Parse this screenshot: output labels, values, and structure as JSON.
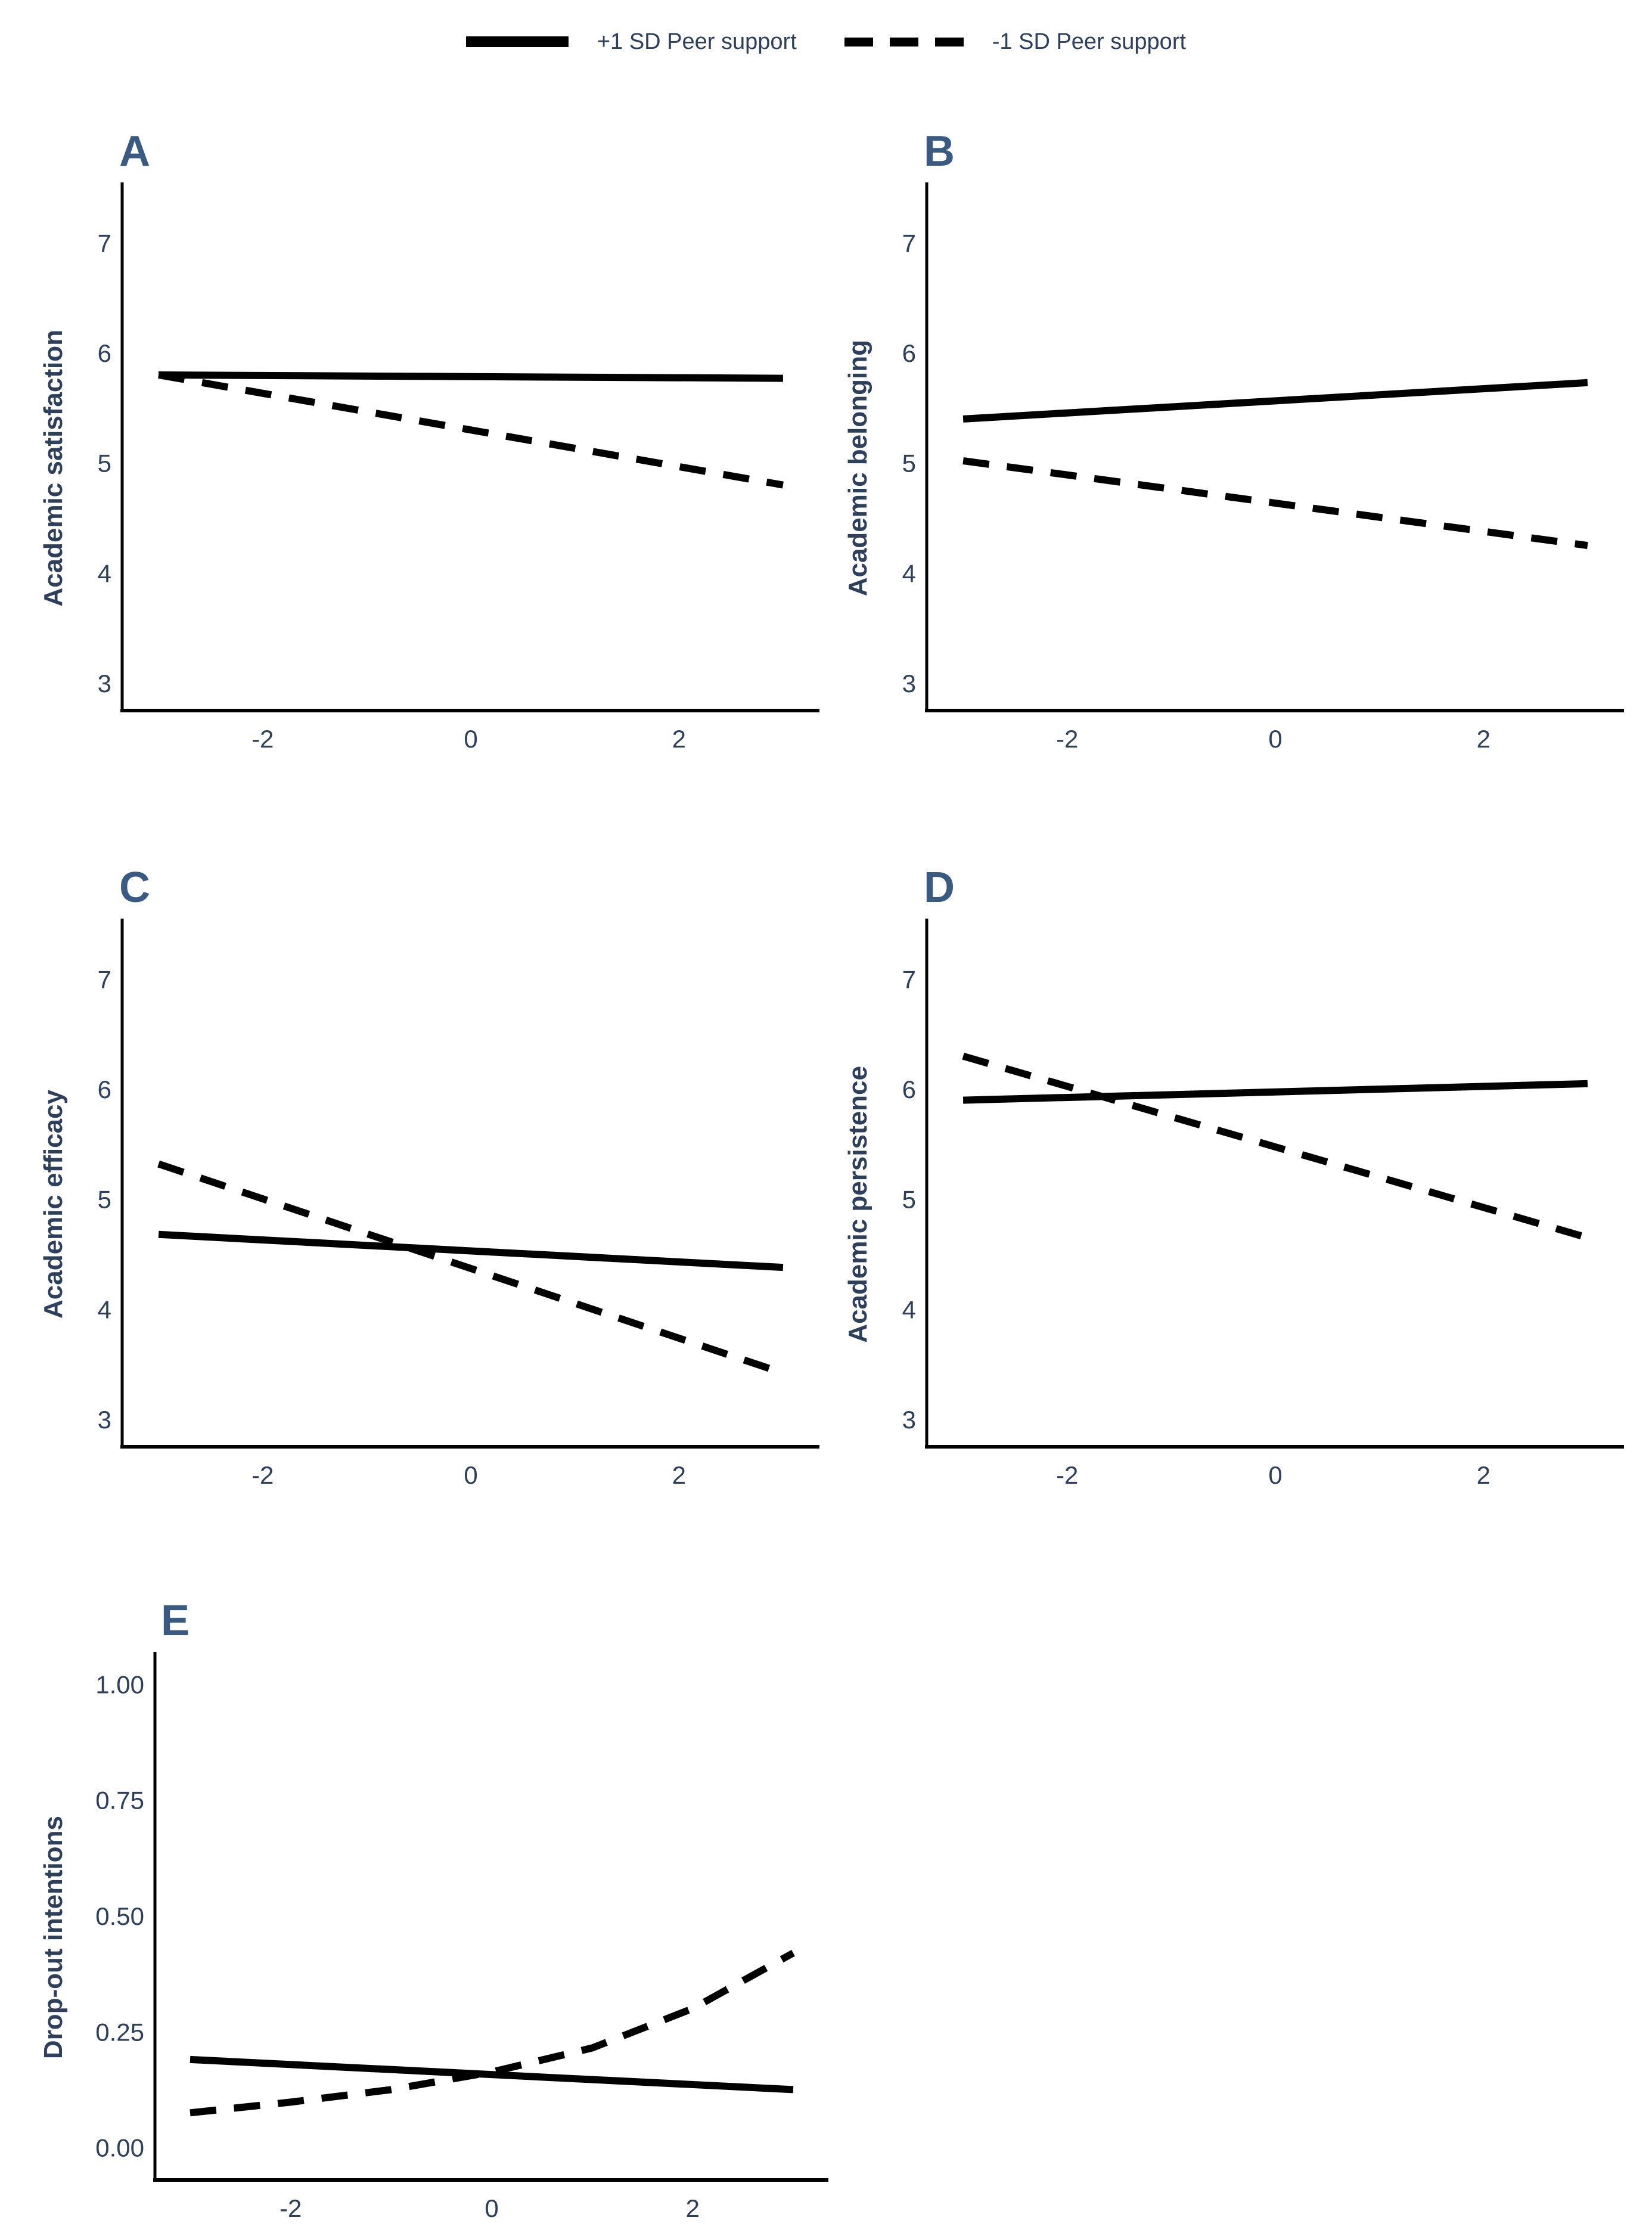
{
  "figure": {
    "background": "#ffffff",
    "ink_color": "#2d3f5a",
    "panel_letter_color": "#3a5a82",
    "line_color": "#000000"
  },
  "legend": {
    "position": "top-center",
    "items": [
      {
        "swatch": "solid-line",
        "label": "+1 SD Peer support"
      },
      {
        "swatch": "dashed-line",
        "label": "-1 SD Peer support"
      }
    ]
  },
  "chart_data": [
    {
      "type": "line",
      "panel": "A",
      "ylabel": "Academic satisfaction",
      "xlabel": "",
      "grid": false,
      "xlim": [
        -3.35,
        3.35
      ],
      "ylim": [
        2.75,
        7.55
      ],
      "margin_left": 80,
      "xticks": [
        {
          "v": -2,
          "label": "-2"
        },
        {
          "v": 0,
          "label": "0"
        },
        {
          "v": 2,
          "label": "2"
        }
      ],
      "yticks": [
        {
          "v": 3,
          "label": "3"
        },
        {
          "v": 4,
          "label": "4"
        },
        {
          "v": 5,
          "label": "5"
        },
        {
          "v": 6,
          "label": "6"
        },
        {
          "v": 7,
          "label": "7"
        }
      ],
      "series": [
        {
          "name": "+1 SD Peer support",
          "style": "solid",
          "points": [
            [
              -3,
              5.8
            ],
            [
              3,
              5.77
            ]
          ]
        },
        {
          "name": "-1 SD Peer support",
          "style": "dashed",
          "points": [
            [
              -3,
              5.8
            ],
            [
              3,
              4.8
            ]
          ]
        }
      ]
    },
    {
      "type": "line",
      "panel": "B",
      "ylabel": "Academic belonging",
      "xlabel": "",
      "grid": false,
      "xlim": [
        -3.35,
        3.35
      ],
      "ylim": [
        2.75,
        7.55
      ],
      "margin_left": 80,
      "xticks": [
        {
          "v": -2,
          "label": "-2"
        },
        {
          "v": 0,
          "label": "0"
        },
        {
          "v": 2,
          "label": "2"
        }
      ],
      "yticks": [
        {
          "v": 3,
          "label": "3"
        },
        {
          "v": 4,
          "label": "4"
        },
        {
          "v": 5,
          "label": "5"
        },
        {
          "v": 6,
          "label": "6"
        },
        {
          "v": 7,
          "label": "7"
        }
      ],
      "series": [
        {
          "name": "+1 SD Peer support",
          "style": "solid",
          "points": [
            [
              -3,
              5.4
            ],
            [
              3,
              5.73
            ]
          ]
        },
        {
          "name": "-1 SD Peer support",
          "style": "dashed",
          "points": [
            [
              -3,
              5.02
            ],
            [
              3,
              4.25
            ]
          ]
        }
      ]
    },
    {
      "type": "line",
      "panel": "C",
      "ylabel": "Academic efficacy",
      "xlabel": "",
      "grid": false,
      "xlim": [
        -3.35,
        3.35
      ],
      "ylim": [
        2.75,
        7.55
      ],
      "margin_left": 80,
      "xticks": [
        {
          "v": -2,
          "label": "-2"
        },
        {
          "v": 0,
          "label": "0"
        },
        {
          "v": 2,
          "label": "2"
        }
      ],
      "yticks": [
        {
          "v": 3,
          "label": "3"
        },
        {
          "v": 4,
          "label": "4"
        },
        {
          "v": 5,
          "label": "5"
        },
        {
          "v": 6,
          "label": "6"
        },
        {
          "v": 7,
          "label": "7"
        }
      ],
      "series": [
        {
          "name": "+1 SD Peer support",
          "style": "solid",
          "points": [
            [
              -3,
              4.68
            ],
            [
              3,
              4.38
            ]
          ]
        },
        {
          "name": "-1 SD Peer support",
          "style": "dashed",
          "points": [
            [
              -3,
              5.32
            ],
            [
              3,
              3.42
            ]
          ]
        }
      ]
    },
    {
      "type": "line",
      "panel": "D",
      "ylabel": "Academic persistence",
      "xlabel": "",
      "grid": false,
      "xlim": [
        -3.35,
        3.35
      ],
      "ylim": [
        2.75,
        7.55
      ],
      "margin_left": 80,
      "xticks": [
        {
          "v": -2,
          "label": "-2"
        },
        {
          "v": 0,
          "label": "0"
        },
        {
          "v": 2,
          "label": "2"
        }
      ],
      "yticks": [
        {
          "v": 3,
          "label": "3"
        },
        {
          "v": 4,
          "label": "4"
        },
        {
          "v": 5,
          "label": "5"
        },
        {
          "v": 6,
          "label": "6"
        },
        {
          "v": 7,
          "label": "7"
        }
      ],
      "series": [
        {
          "name": "+1 SD Peer support",
          "style": "solid",
          "points": [
            [
              -3,
              5.9
            ],
            [
              3,
              6.05
            ]
          ]
        },
        {
          "name": "-1 SD Peer support",
          "style": "dashed",
          "points": [
            [
              -3,
              6.3
            ],
            [
              3,
              4.65
            ]
          ]
        }
      ]
    },
    {
      "type": "line",
      "panel": "E",
      "ylabel": "Drop-out intentions",
      "xlabel": "",
      "grid": false,
      "xlim": [
        -3.35,
        3.35
      ],
      "ylim": [
        -0.07,
        1.07
      ],
      "margin_left": 135,
      "xticks": [
        {
          "v": -2,
          "label": "-2"
        },
        {
          "v": 0,
          "label": "0"
        },
        {
          "v": 2,
          "label": "2"
        }
      ],
      "yticks": [
        {
          "v": 0,
          "label": "0.00"
        },
        {
          "v": 0.25,
          "label": "0.25"
        },
        {
          "v": 0.5,
          "label": "0.50"
        },
        {
          "v": 0.75,
          "label": "0.75"
        },
        {
          "v": 1,
          "label": "1.00"
        }
      ],
      "series": [
        {
          "name": "+1 SD Peer support",
          "style": "solid",
          "points": [
            [
              -3,
              0.19
            ],
            [
              3,
              0.125
            ]
          ]
        },
        {
          "name": "-1 SD Peer support",
          "style": "dashed",
          "points": [
            [
              -3,
              0.075
            ],
            [
              -2,
              0.098
            ],
            [
              -1,
              0.125
            ],
            [
              0,
              0.163
            ],
            [
              1,
              0.215
            ],
            [
              2,
              0.3
            ],
            [
              3,
              0.42
            ]
          ]
        }
      ]
    }
  ]
}
